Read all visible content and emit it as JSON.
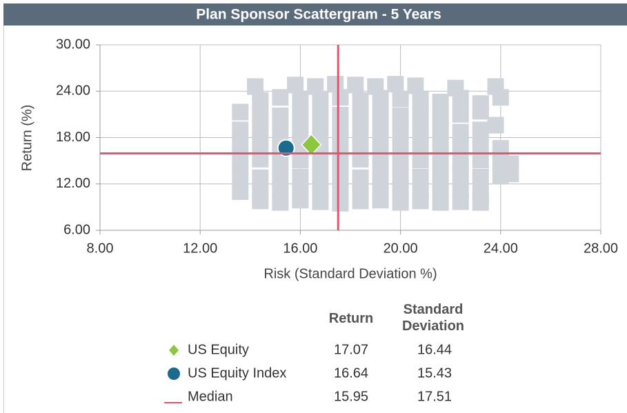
{
  "chart_data": {
    "type": "scatter",
    "title": "Plan Sponsor Scattergram - 5 Years",
    "xlabel": "Risk (Standard Deviation %)",
    "ylabel": "Return (%)",
    "xlim": [
      8,
      28
    ],
    "ylim": [
      6,
      30
    ],
    "xticks": [
      {
        "value": 8,
        "label": "8.00"
      },
      {
        "value": 12,
        "label": "12.00"
      },
      {
        "value": 16,
        "label": "16.00"
      },
      {
        "value": 20,
        "label": "20.00"
      },
      {
        "value": 24,
        "label": "24.00"
      },
      {
        "value": 28,
        "label": "28.00"
      }
    ],
    "yticks": [
      {
        "value": 6,
        "label": "6.00"
      },
      {
        "value": 12,
        "label": "12.00"
      },
      {
        "value": 18,
        "label": "18.00"
      },
      {
        "value": 24,
        "label": "24.00"
      },
      {
        "value": 30,
        "label": "30.00"
      }
    ],
    "grid": true,
    "peers": {
      "color": "#cfd3da",
      "rows": [
        {
          "x": [
            14.2,
            15.8,
            16.6,
            17.4,
            18.2,
            19.0,
            19.8,
            20.6,
            22.2,
            23.8
          ],
          "values": [
            24.6,
            24.8,
            24.6,
            24.9,
            24.8,
            24.6,
            24.9,
            24.7,
            24.4,
            24.6
          ]
        },
        {
          "x": [
            14.4,
            15.2,
            16.0,
            16.8,
            17.6,
            18.4,
            19.2,
            20.0,
            20.8,
            21.6,
            22.4,
            23.2,
            24.0
          ],
          "values": [
            22.8,
            23.2,
            22.9,
            23.0,
            23.2,
            22.8,
            23.1,
            23.0,
            22.9,
            22.6,
            23.1,
            22.4,
            23.2
          ]
        },
        {
          "x": [
            13.6,
            14.4,
            15.2,
            16.0,
            16.8,
            17.6,
            18.4,
            19.2,
            20.0,
            20.8,
            21.6,
            22.4,
            23.2
          ],
          "values": [
            21.3,
            21.0,
            20.8,
            21.2,
            21.0,
            20.9,
            21.1,
            21.0,
            20.8,
            21.2,
            20.6,
            21.0,
            21.4
          ]
        },
        {
          "x": [
            13.6,
            14.4,
            15.2,
            16.0,
            16.8,
            17.6,
            18.4,
            19.2,
            20.0,
            20.8,
            21.6,
            22.4,
            23.2,
            23.8
          ],
          "values": [
            19.0,
            19.2,
            18.9,
            19.1,
            19.0,
            18.8,
            19.2,
            19.0,
            18.9,
            19.1,
            19.0,
            18.7,
            19.0,
            19.6
          ]
        },
        {
          "x": [
            13.6,
            14.4,
            15.2,
            16.0,
            16.8,
            17.6,
            18.4,
            19.2,
            20.0,
            20.8,
            21.6,
            22.4,
            23.2,
            24.0
          ],
          "values": [
            17.0,
            17.2,
            16.9,
            17.1,
            17.0,
            16.8,
            17.2,
            17.0,
            16.9,
            17.1,
            17.0,
            16.8,
            17.1,
            16.6
          ]
        },
        {
          "x": [
            13.6,
            14.4,
            15.2,
            16.0,
            16.8,
            17.6,
            18.4,
            19.2,
            20.0,
            20.8,
            21.6,
            22.4,
            23.2,
            24.0,
            24.4
          ],
          "values": [
            15.0,
            15.2,
            14.9,
            15.1,
            15.0,
            14.8,
            15.2,
            15.0,
            14.9,
            15.1,
            15.0,
            14.8,
            15.1,
            15.0,
            14.6
          ]
        },
        {
          "x": [
            13.6,
            14.4,
            15.2,
            16.0,
            16.8,
            17.6,
            18.4,
            19.2,
            20.0,
            20.8,
            21.6,
            22.4,
            23.2,
            24.0,
            24.4
          ],
          "values": [
            13.0,
            12.8,
            13.1,
            12.9,
            13.0,
            13.2,
            12.8,
            13.0,
            13.1,
            12.9,
            13.0,
            13.2,
            12.9,
            13.0,
            13.3
          ]
        },
        {
          "x": [
            13.6,
            14.4,
            15.2,
            16.0,
            16.8,
            17.6,
            18.4,
            19.2,
            20.0,
            20.8,
            21.6,
            22.4,
            23.2
          ],
          "values": [
            11.0,
            10.8,
            11.1,
            10.9,
            11.0,
            11.2,
            10.8,
            11.0,
            11.1,
            10.9,
            11.0,
            11.2,
            10.9
          ]
        },
        {
          "x": [
            14.4,
            15.2,
            16.0,
            16.8,
            17.6,
            18.4,
            19.2,
            20.0,
            20.8,
            21.6,
            22.4,
            23.2
          ],
          "values": [
            9.8,
            9.6,
            9.9,
            9.7,
            9.5,
            9.8,
            9.9,
            9.6,
            9.8,
            9.6,
            9.7,
            9.6
          ]
        }
      ]
    },
    "series": [
      {
        "name": "US Equity",
        "marker": "diamond",
        "color": "#8dc63f",
        "x": [
          16.44
        ],
        "values": [
          17.07
        ]
      },
      {
        "name": "US Equity Index",
        "marker": "circle",
        "color": "#1d6a8f",
        "x": [
          15.43
        ],
        "values": [
          16.64
        ]
      },
      {
        "name": "Median",
        "marker": "crosshair",
        "color": "#f0506e",
        "x": [
          17.51
        ],
        "values": [
          15.95
        ]
      }
    ],
    "table_headers": [
      "Return",
      "Standard Deviation"
    ]
  }
}
